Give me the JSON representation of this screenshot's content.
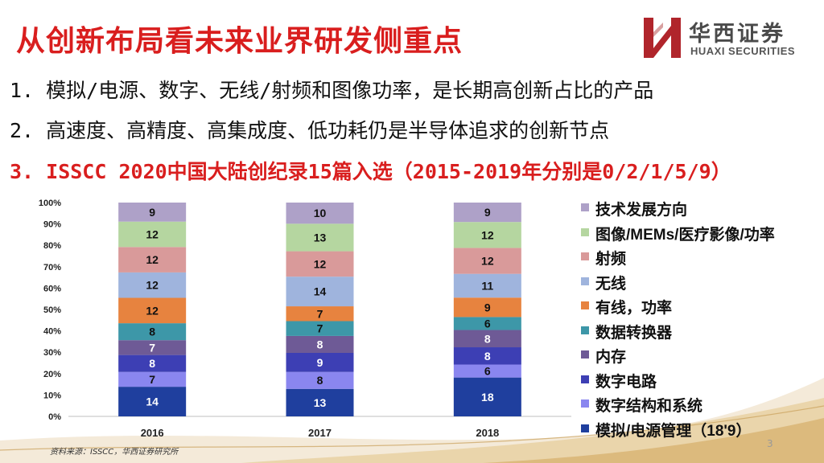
{
  "title": "从创新布局看未来业界研发侧重点",
  "logo": {
    "name_cn": "华西证券",
    "name_en": "HUAXI SECURITIES",
    "brand_color": "#b0252b",
    "icon": "huaxi-h-logo-icon"
  },
  "bullets": [
    "1. 模拟/电源、数字、无线/射频和图像功率，是长期高创新占比的产品",
    "2. 高速度、高精度、高集成度、低功耗仍是半导体追求的创新节点",
    "3. ISSCC 2020中国大陆创纪录15篇入选（2015-2019年分别是0/2/1/5/9）"
  ],
  "colors": {
    "title": "#d91e1e",
    "highlight": "#d91e1e"
  },
  "chart_data": {
    "type": "bar",
    "stacked": true,
    "categories": [
      "2016",
      "2017",
      "2018"
    ],
    "ylim": [
      0,
      100
    ],
    "yticks": [
      "0%",
      "10%",
      "20%",
      "30%",
      "40%",
      "50%",
      "60%",
      "70%",
      "80%",
      "90%",
      "100%"
    ],
    "legend_position": "right",
    "series": [
      {
        "name": "模拟/电源管理（18'9）",
        "color": "#1f3f9e",
        "values": [
          14,
          13,
          18
        ]
      },
      {
        "name": "数字结构和系统",
        "color": "#8a86ef",
        "values": [
          7,
          8,
          6
        ]
      },
      {
        "name": "数字电路",
        "color": "#3d3fb4",
        "values": [
          8,
          9,
          8
        ]
      },
      {
        "name": "内存",
        "color": "#6e5a96",
        "values": [
          7,
          8,
          8
        ]
      },
      {
        "name": "数据转换器",
        "color": "#3d97a8",
        "values": [
          8,
          7,
          6
        ]
      },
      {
        "name": "有线，功率",
        "color": "#e7833f",
        "values": [
          12,
          7,
          9
        ]
      },
      {
        "name": "无线",
        "color": "#9fb4dd",
        "values": [
          12,
          14,
          11
        ]
      },
      {
        "name": "射频",
        "color": "#d99a9a",
        "values": [
          12,
          12,
          12
        ]
      },
      {
        "name": "图像/MEMs/医疗影像/功率",
        "color": "#b5d6a0",
        "values": [
          12,
          13,
          12
        ]
      },
      {
        "name": "技术发展方向",
        "color": "#aea1c8",
        "values": [
          9,
          10,
          9
        ]
      }
    ]
  },
  "source": "资料来源：ISSCC，华西证券研究所",
  "page_number": "3"
}
